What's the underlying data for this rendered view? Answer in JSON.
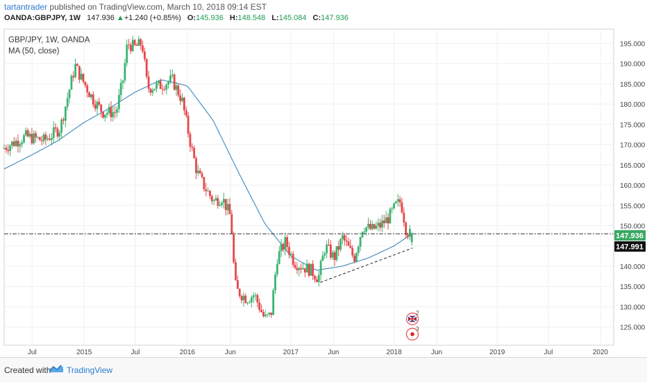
{
  "header": {
    "author": "tartantrader",
    "publish_text": "published on TradingView.com, March 10, 2018 09:14 EST",
    "symbol": "OANDA:GBPJPY, 1W",
    "last": "147.936",
    "change_arrow": "▲",
    "change": "+1.240 (+0.85%)",
    "o_label": "O:",
    "o_value": "145.936",
    "h_label": "H:",
    "h_value": "148.548",
    "l_label": "L:",
    "l_value": "145.084",
    "c_label": "C:",
    "c_value": "147.936"
  },
  "legend": {
    "instrument": "GBP/JPY, 1W, OANDA",
    "ma": "MA (50, close)"
  },
  "price_tags": {
    "last_price": "147.936",
    "ma_value": "147.991"
  },
  "events": {
    "flag_count": "2",
    "news_count": "3"
  },
  "footer": {
    "created_with": "Created with",
    "brand": "TradingView"
  },
  "colors": {
    "up": "#26a69a",
    "up_candle": "#3cb371",
    "down": "#e5474b",
    "ma_line": "#4a90c2",
    "last_tag": "#38a863",
    "ma_tag": "#111111",
    "grid": "#eef0f2"
  },
  "chart_data": {
    "type": "candlestick",
    "title": "GBP/JPY, 1W, OANDA",
    "x_ticks": [
      "Jul",
      "2015",
      "Jul",
      "2016",
      "Jun",
      "2017",
      "Jun",
      "2018",
      "Jun",
      "2019",
      "Jul",
      "2020"
    ],
    "x_tick_dates": [
      "2014-07-01",
      "2015-01-01",
      "2015-07-01",
      "2016-01-01",
      "2016-06-01",
      "2017-01-01",
      "2017-06-01",
      "2018-01-01",
      "2018-06-01",
      "2019-01-01",
      "2019-07-01",
      "2020-01-01"
    ],
    "y_ticks": [
      "195.000",
      "190.000",
      "185.000",
      "180.000",
      "175.000",
      "170.000",
      "165.000",
      "160.000",
      "155.000",
      "150.000",
      "145.000",
      "140.000",
      "135.000",
      "130.000",
      "125.000"
    ],
    "ylim": [
      120.5,
      198.5
    ],
    "x_range": [
      "2014-03-24",
      "2020-02-17"
    ],
    "price_anchors": [
      [
        "2014-03-24",
        169
      ],
      [
        "2014-06-15",
        172
      ],
      [
        "2014-08-20",
        171
      ],
      [
        "2014-10-15",
        174
      ],
      [
        "2014-12-07",
        189.5
      ],
      [
        "2015-01-01",
        186
      ],
      [
        "2015-02-10",
        181
      ],
      [
        "2015-03-15",
        178
      ],
      [
        "2015-05-01",
        178
      ],
      [
        "2015-05-25",
        186
      ],
      [
        "2015-06-10",
        195
      ],
      [
        "2015-07-05",
        194
      ],
      [
        "2015-08-01",
        195
      ],
      [
        "2015-08-20",
        184
      ],
      [
        "2015-10-01",
        184.5
      ],
      [
        "2015-11-15",
        186
      ],
      [
        "2015-12-20",
        181
      ],
      [
        "2016-01-20",
        170
      ],
      [
        "2016-02-10",
        163.5
      ],
      [
        "2016-03-05",
        160
      ],
      [
        "2016-04-10",
        156
      ],
      [
        "2016-05-10",
        157
      ],
      [
        "2016-06-10",
        152
      ],
      [
        "2016-06-24",
        136
      ],
      [
        "2016-07-01",
        134
      ],
      [
        "2016-08-05",
        132
      ],
      [
        "2016-09-01",
        133
      ],
      [
        "2016-10-07",
        127
      ],
      [
        "2016-10-30",
        128
      ],
      [
        "2016-11-20",
        142
      ],
      [
        "2016-12-20",
        146
      ],
      [
        "2017-01-20",
        141
      ],
      [
        "2017-02-15",
        140
      ],
      [
        "2017-03-20",
        139
      ],
      [
        "2017-04-15",
        137
      ],
      [
        "2017-05-10",
        145
      ],
      [
        "2017-06-10",
        142
      ],
      [
        "2017-07-10",
        147
      ],
      [
        "2017-08-20",
        142
      ],
      [
        "2017-09-20",
        150
      ],
      [
        "2017-10-20",
        149
      ],
      [
        "2017-11-20",
        150
      ],
      [
        "2017-12-20",
        152
      ],
      [
        "2018-01-15",
        155
      ],
      [
        "2018-02-01",
        156
      ],
      [
        "2018-02-20",
        149
      ],
      [
        "2018-03-05",
        147.936
      ]
    ],
    "ma50": [
      [
        "2014-03-24",
        164
      ],
      [
        "2014-07-01",
        167.5
      ],
      [
        "2014-10-01",
        171
      ],
      [
        "2015-01-01",
        175.5
      ],
      [
        "2015-04-01",
        179
      ],
      [
        "2015-07-01",
        183
      ],
      [
        "2015-10-01",
        186
      ],
      [
        "2016-01-01",
        184.5
      ],
      [
        "2016-04-01",
        176
      ],
      [
        "2016-07-01",
        163
      ],
      [
        "2016-10-01",
        150.5
      ],
      [
        "2017-01-01",
        142.5
      ],
      [
        "2017-04-01",
        139
      ],
      [
        "2017-07-01",
        140
      ],
      [
        "2017-10-01",
        142
      ],
      [
        "2018-01-01",
        145
      ],
      [
        "2018-03-05",
        147.991
      ]
    ],
    "horizontal_line": 148.0,
    "trendline": [
      [
        "2017-04-15",
        136
      ],
      [
        "2018-03-08",
        144.5
      ]
    ],
    "last_candle": {
      "open": 145.936,
      "high": 148.548,
      "low": 145.084,
      "close": 147.936
    }
  }
}
